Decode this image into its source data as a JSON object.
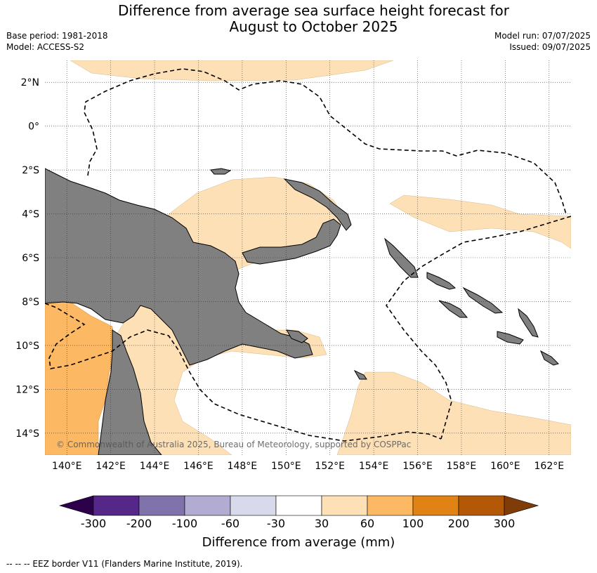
{
  "title": {
    "line1": "Difference from average sea surface height forecast for",
    "line2": "August to October 2025"
  },
  "meta": {
    "base_period": "Base period: 1981-2018",
    "model": "Model: ACCESS-S2",
    "model_run": "Model run: 07/07/2025",
    "issued": "Issued: 09/07/2025"
  },
  "map": {
    "lon_range": [
      139,
      163
    ],
    "lat_range": [
      -15,
      3
    ],
    "lon_ticks": [
      "140°E",
      "142°E",
      "144°E",
      "146°E",
      "148°E",
      "150°E",
      "152°E",
      "154°E",
      "156°E",
      "158°E",
      "160°E",
      "162°E"
    ],
    "lat_ticks": [
      "2°N",
      "0°",
      "2°S",
      "4°S",
      "6°S",
      "8°S",
      "10°S",
      "12°S",
      "14°S"
    ],
    "land_color": "#808080",
    "eez_label": "EEZ border",
    "credit": "© Commonwealth of Australia 2025, Bureau of Meteorology, supported by COSPPac"
  },
  "colorbar": {
    "bins": [
      {
        "color": "#2d004b"
      },
      {
        "color": "#542788"
      },
      {
        "color": "#8073ac"
      },
      {
        "color": "#b2abd2"
      },
      {
        "color": "#d8daeb"
      },
      {
        "color": "#ffffff"
      },
      {
        "color": "#fee0b6"
      },
      {
        "color": "#fdb863"
      },
      {
        "color": "#e08214"
      },
      {
        "color": "#b35806"
      },
      {
        "color": "#7f3b08"
      }
    ],
    "tick_labels": [
      "-300",
      "-200",
      "-100",
      "-60",
      "-30",
      "30",
      "60",
      "100",
      "200",
      "300"
    ],
    "label": "Difference from average (mm)"
  },
  "footnote": "--  --  -- EEZ border V11 (Flanders Marine Institute, 2019)."
}
